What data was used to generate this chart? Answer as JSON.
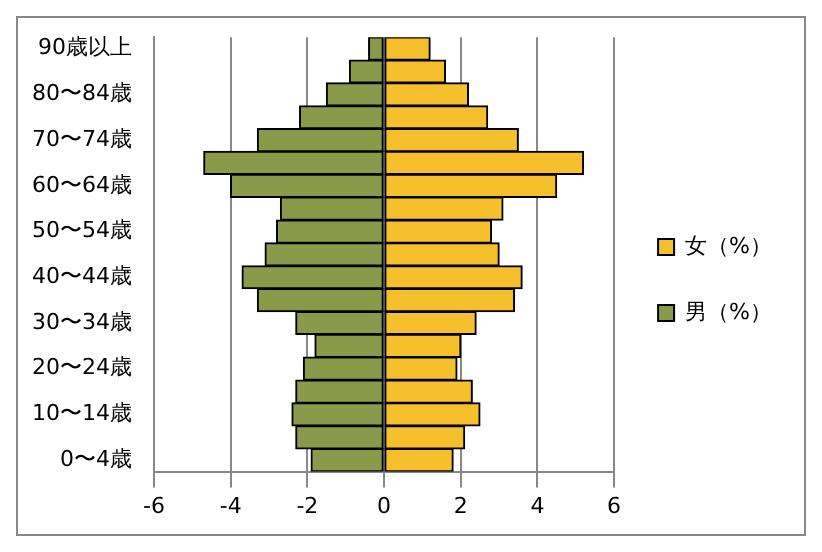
{
  "chart_data": {
    "type": "bar",
    "orientation": "horizontal",
    "stacked": true,
    "categories": [
      "90歳以上",
      null,
      "80〜84歳",
      null,
      "70〜74歳",
      null,
      "60〜64歳",
      null,
      "50〜54歳",
      null,
      "40〜44歳",
      null,
      "30〜34歳",
      null,
      "20〜24歳",
      null,
      "10〜14歳",
      null,
      "0〜4歳"
    ],
    "series": [
      {
        "name": "女（%）",
        "color": "#f5c02c",
        "values": [
          1.2,
          1.6,
          2.2,
          2.7,
          3.5,
          5.2,
          4.5,
          3.1,
          2.8,
          3.0,
          3.6,
          3.4,
          2.4,
          2.0,
          1.9,
          2.3,
          2.5,
          2.1,
          1.8
        ]
      },
      {
        "name": "男（%）",
        "color": "#8a9a4a",
        "values": [
          -0.4,
          -0.9,
          -1.5,
          -2.2,
          -3.3,
          -4.7,
          -4.0,
          -2.7,
          -2.8,
          -3.1,
          -3.7,
          -3.3,
          -2.3,
          -1.8,
          -2.1,
          -2.3,
          -2.4,
          -2.3,
          -1.9
        ]
      }
    ],
    "xlim": [
      -6,
      6
    ],
    "xticks": [
      -6,
      -4,
      -2,
      0,
      2,
      4,
      6
    ],
    "grid": "x",
    "legend": "right"
  }
}
